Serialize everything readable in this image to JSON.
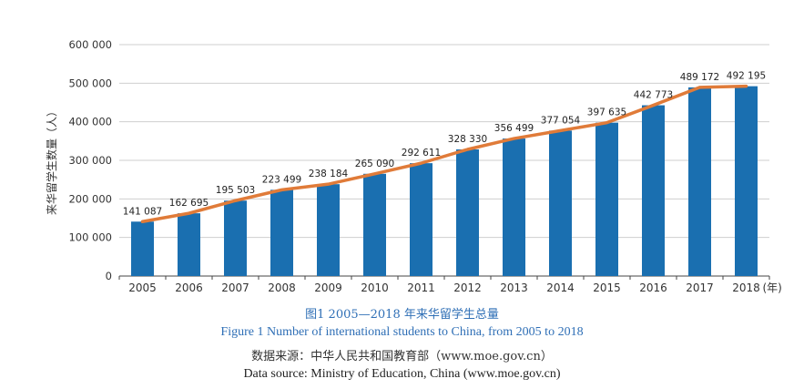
{
  "chart_data": {
    "type": "bar",
    "categories": [
      "2005",
      "2006",
      "2007",
      "2008",
      "2009",
      "2010",
      "2011",
      "2012",
      "2013",
      "2014",
      "2015",
      "2016",
      "2017",
      "2018"
    ],
    "values": [
      141087,
      162695,
      195503,
      223499,
      238184,
      265090,
      292611,
      328330,
      356499,
      377054,
      397635,
      442773,
      489172,
      492195
    ],
    "data_labels": [
      "141 087",
      "162 695",
      "195 503",
      "223 499",
      "238 184",
      "265 090",
      "292 611",
      "328 330",
      "356 499",
      "377 054",
      "397 635",
      "442 773",
      "489 172",
      "492 195"
    ],
    "x_unit_label": "(年)",
    "ylabel": "来华留学生数量（人）",
    "ylim": [
      0,
      600000
    ],
    "yticks": [
      0,
      100000,
      200000,
      300000,
      400000,
      500000,
      600000
    ],
    "ytick_labels": [
      "0",
      "100 000",
      "200 000",
      "300 000",
      "400 000",
      "500 000",
      "600 000"
    ],
    "grid": true,
    "overlay_line": true,
    "colors": {
      "bar": "#1a6fb0",
      "line": "#e07b39",
      "grid": "#cfcfcf",
      "axis": "#444444"
    }
  },
  "caption": {
    "cn": "图1    2005—2018 年来华留学生总量",
    "en": "Figure 1    Number of international students to China, from 2005 to 2018"
  },
  "source": {
    "cn": "数据来源：中华人民共和国教育部（www.moe.gov.cn）",
    "en": "Data source: Ministry of Education, China (www.moe.gov.cn)"
  }
}
